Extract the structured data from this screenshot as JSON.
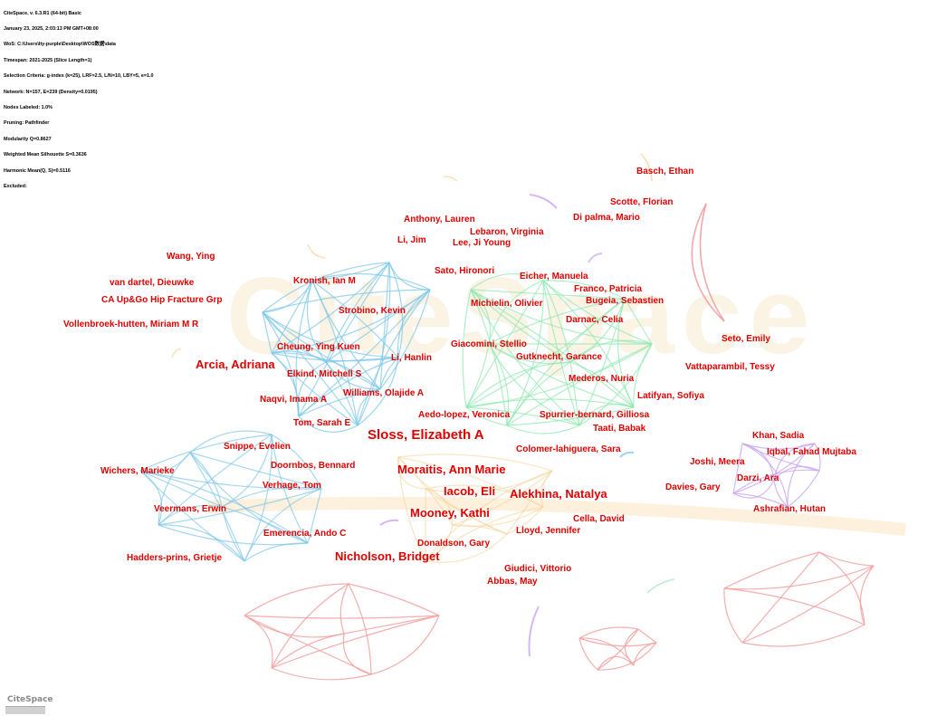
{
  "header": {
    "lines": [
      "CiteSpace, v. 6.3.R1 (64-bit) Basic",
      "January 23, 2025, 2:03:13 PM GMT+08:00",
      "WoS: C:\\Users\\lty-purple\\Desktop\\WOS数据\\data",
      "Timespan: 2021-2025 (Slice Length=1)",
      "Selection Criteria: g-index (k=25), LRF=2.5, L/N=10, LBY=5, e=1.0",
      "Network: N=157, E=239 (Density=0.0195)",
      "Nodes Labeled: 1.0%",
      "Pruning: Pathfinder",
      "Modularity Q=0.8627",
      "Weighted Mean Silhouette S=0.3636",
      "Harmonic Mean(Q, S)=0.5116",
      "Excluded:"
    ]
  },
  "watermark": "CiteSpace",
  "logo": "CiteSpace",
  "colors": {
    "label": "#e00000",
    "cluster_blue": "#7fc8ea",
    "cluster_green": "#8ee8b0",
    "cluster_red": "#f2a0a0",
    "cluster_purple": "#c9a6f2",
    "cluster_orange": "#f7d39a"
  },
  "authors": [
    {
      "id": "basch",
      "name": "Basch, Ethan",
      "size": "s10"
    },
    {
      "id": "scotte",
      "name": "Scotte, Florian",
      "size": "s10"
    },
    {
      "id": "dipalma",
      "name": "Di palma, Mario",
      "size": "s10"
    },
    {
      "id": "anthony",
      "name": "Anthony, Lauren",
      "size": "s10"
    },
    {
      "id": "lebaron",
      "name": "Lebaron, Virginia",
      "size": "s10"
    },
    {
      "id": "lijim",
      "name": "Li, Jim",
      "size": "s10"
    },
    {
      "id": "leejiyoung",
      "name": "Lee, Ji Young",
      "size": "s10"
    },
    {
      "id": "wangying",
      "name": "Wang, Ying",
      "size": "s10"
    },
    {
      "id": "satohironori",
      "name": "Sato, Hironori",
      "size": "s10"
    },
    {
      "id": "eicher",
      "name": "Eicher, Manuela",
      "size": "s10"
    },
    {
      "id": "vandartel",
      "name": "van dartel, Dieuwke",
      "size": "s10"
    },
    {
      "id": "kronish",
      "name": "Kronish, Ian M",
      "size": "s10"
    },
    {
      "id": "franco",
      "name": "Franco, Patricia",
      "size": "s10"
    },
    {
      "id": "caupgo",
      "name": "CA Up&Go Hip Fracture Grp",
      "size": "s10"
    },
    {
      "id": "michielin",
      "name": "Michielin, Olivier",
      "size": "s10"
    },
    {
      "id": "bugeia",
      "name": "Bugeia, Sebastien",
      "size": "s10"
    },
    {
      "id": "strobino",
      "name": "Strobino, Kevin",
      "size": "s10"
    },
    {
      "id": "darnac",
      "name": "Darnac, Celia",
      "size": "s10"
    },
    {
      "id": "vollenbroek",
      "name": "Vollenbroek-hutten, Miriam M R",
      "size": "s10"
    },
    {
      "id": "setoemily",
      "name": "Seto, Emily",
      "size": "s10"
    },
    {
      "id": "cheung",
      "name": "Cheung, Ying Kuen",
      "size": "s10"
    },
    {
      "id": "giacomini",
      "name": "Giacomini, Stellio",
      "size": "s10"
    },
    {
      "id": "gutknecht",
      "name": "Gutknecht, Garance",
      "size": "s10"
    },
    {
      "id": "lihanlin",
      "name": "Li, Hanlin",
      "size": "s10"
    },
    {
      "id": "arcia",
      "name": "Arcia, Adriana",
      "size": "s13"
    },
    {
      "id": "vattaparambil",
      "name": "Vattaparambil, Tessy",
      "size": "s10"
    },
    {
      "id": "elkind",
      "name": "Elkind, Mitchell S",
      "size": "s10"
    },
    {
      "id": "mederos",
      "name": "Mederos, Nuria",
      "size": "s10"
    },
    {
      "id": "williams",
      "name": "Williams, Olajide A",
      "size": "s10"
    },
    {
      "id": "latifyan",
      "name": "Latifyan, Sofiya",
      "size": "s10"
    },
    {
      "id": "naqvi",
      "name": "Naqvi, Imama A",
      "size": "s10"
    },
    {
      "id": "aedolopez",
      "name": "Aedo-lopez, Veronica",
      "size": "s10"
    },
    {
      "id": "spurrier",
      "name": "Spurrier-bernard, Gilliosa",
      "size": "s10"
    },
    {
      "id": "tomsarah",
      "name": "Tom, Sarah E",
      "size": "s10"
    },
    {
      "id": "taati",
      "name": "Taati, Babak",
      "size": "s10"
    },
    {
      "id": "sloss",
      "name": "Sloss, Elizabeth A",
      "size": "s15"
    },
    {
      "id": "khan",
      "name": "Khan, Sadia",
      "size": "s10"
    },
    {
      "id": "snippe",
      "name": "Snippe, Evelien",
      "size": "s10"
    },
    {
      "id": "colomer",
      "name": "Colomer-lahiguera, Sara",
      "size": "s10"
    },
    {
      "id": "iqbal",
      "name": "Iqbal, Fahad Mujtaba",
      "size": "s10"
    },
    {
      "id": "doornbos",
      "name": "Doornbos, Bennard",
      "size": "s10"
    },
    {
      "id": "joshi",
      "name": "Joshi, Meera",
      "size": "s10"
    },
    {
      "id": "wichers",
      "name": "Wichers, Marieke",
      "size": "s10"
    },
    {
      "id": "moraitis",
      "name": "Moraitis, Ann Marie",
      "size": "s13"
    },
    {
      "id": "darzi",
      "name": "Darzi, Ara",
      "size": "s10"
    },
    {
      "id": "verhage",
      "name": "Verhage, Tom",
      "size": "s10"
    },
    {
      "id": "iacob",
      "name": "Iacob, Eli",
      "size": "s13"
    },
    {
      "id": "alekhina",
      "name": "Alekhina, Natalya",
      "size": "s13"
    },
    {
      "id": "davies",
      "name": "Davies, Gary",
      "size": "s10"
    },
    {
      "id": "veermans",
      "name": "Veermans, Erwin",
      "size": "s10"
    },
    {
      "id": "mooney",
      "name": "Mooney, Kathi",
      "size": "s13"
    },
    {
      "id": "ashrafian",
      "name": "Ashrafian, Hutan",
      "size": "s10"
    },
    {
      "id": "cella",
      "name": "Cella, David",
      "size": "s10"
    },
    {
      "id": "emerencia",
      "name": "Emerencia, Ando C",
      "size": "s10"
    },
    {
      "id": "lloyd",
      "name": "Lloyd, Jennifer",
      "size": "s10"
    },
    {
      "id": "donaldson",
      "name": "Donaldson, Gary",
      "size": "s10"
    },
    {
      "id": "haddersprins",
      "name": "Hadders-prins, Grietje",
      "size": "s10"
    },
    {
      "id": "nicholson",
      "name": "Nicholson, Bridget",
      "size": "s13"
    },
    {
      "id": "giudici",
      "name": "Giudici, Vittorio",
      "size": "s10"
    },
    {
      "id": "abbas",
      "name": "Abbas, May",
      "size": "s10"
    }
  ]
}
